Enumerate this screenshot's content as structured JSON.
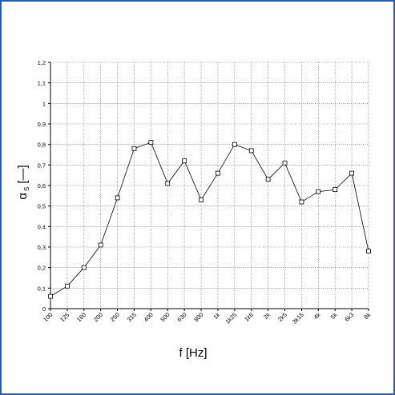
{
  "chart_data": {
    "type": "line",
    "title": "",
    "xlabel": "f [Hz]",
    "ylabel_symbol": "α",
    "ylabel_subscript": "S",
    "ylabel_unit": "[—]",
    "categories": [
      "100",
      "125",
      "160",
      "200",
      "250",
      "315",
      "400",
      "500",
      "630",
      "800",
      "1k",
      "1k25",
      "1k6",
      "2k",
      "2k5",
      "3k15",
      "4k",
      "5k",
      "6k3",
      "8k"
    ],
    "series": [
      {
        "values": [
          0.06,
          0.11,
          0.2,
          0.31,
          0.54,
          0.78,
          0.81,
          0.61,
          0.72,
          0.53,
          0.66,
          0.8,
          0.77,
          0.63,
          0.71,
          0.52,
          0.57,
          0.58,
          0.66,
          0.28
        ]
      }
    ],
    "yticks": [
      "0",
      "0,1",
      "0,2",
      "0,3",
      "0,4",
      "0,5",
      "0,6",
      "0,7",
      "0,8",
      "0,9",
      "1",
      "1,1",
      "1,2"
    ],
    "ylim": [
      0,
      1.2
    ],
    "grid": true,
    "line_color": "#000000",
    "marker": "open-square",
    "frame_color": "#2b5ea7"
  }
}
